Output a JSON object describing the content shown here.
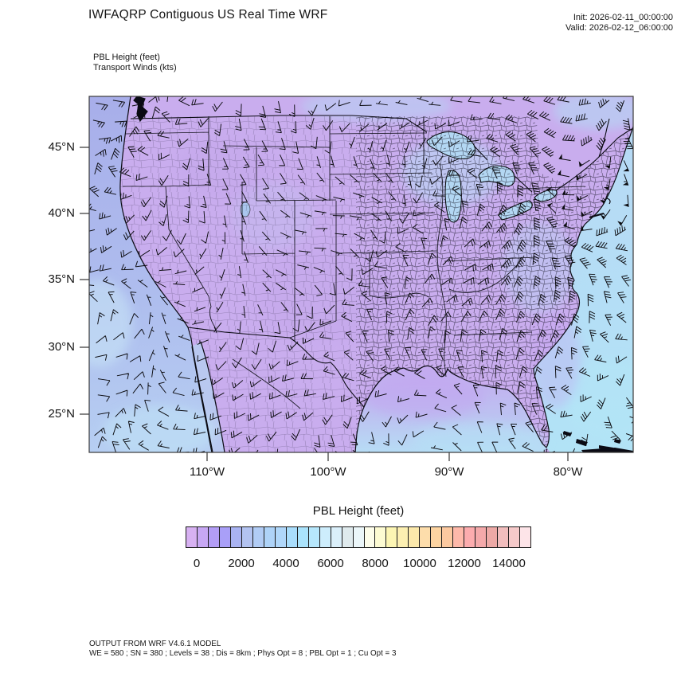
{
  "header": {
    "title": "IWFAQRP Contiguous US Real Time WRF",
    "init": "Init: 2026-02-11_00:00:00",
    "valid": "Valid: 2026-02-12_06:00:00"
  },
  "field_labels": {
    "line1": "PBL Height   (feet)",
    "line2": "Transport Winds   (kts)"
  },
  "axes": {
    "lat_ticks": [
      "45°N",
      "40°N",
      "35°N",
      "30°N",
      "25°N"
    ],
    "lon_ticks": [
      "110°W",
      "100°W",
      "90°W",
      "80°W"
    ]
  },
  "colorbar": {
    "title": "PBL Height  (feet)",
    "tick_labels": [
      "0",
      "2000",
      "4000",
      "6000",
      "8000",
      "10000",
      "12000",
      "14000"
    ],
    "colors": [
      "#d7b1f2",
      "#c7a7f4",
      "#b39df6",
      "#a99ff8",
      "#a9b3f2",
      "#b3c3f1",
      "#b1ccf5",
      "#aed3f8",
      "#b0d7fa",
      "#a9ddfc",
      "#aae3fc",
      "#b6e7fc",
      "#cdedfc",
      "#daeffa",
      "#dfeaed",
      "#ebf6f9",
      "#fdfdea",
      "#fdfbd2",
      "#fcf5b3",
      "#fcefb1",
      "#fce9ab",
      "#fdddab",
      "#fdd4a1",
      "#fcc9a0",
      "#feb9aa",
      "#fcacae",
      "#f4a9aa",
      "#eda9a6",
      "#f1bdbd",
      "#f6caca",
      "#fde4e8"
    ]
  },
  "footer": {
    "line1": "OUTPUT FROM WRF V4.6.1 MODEL",
    "line2": "WE = 580 ; SN = 380 ; Levels = 38 ; Dis = 8km ; Phys Opt = 8 ; PBL Opt = 1 ; Cu Opt = 3"
  },
  "chart_data": {
    "type": "heatmap",
    "title": "IWFAQRP Contiguous US Real Time WRF",
    "field": "PBL Height",
    "units": "feet",
    "wind_overlay": "Transport Winds",
    "wind_overlay_units": "kts",
    "init_time": "2026-02-11_00:00:00",
    "valid_time": "2026-02-12_06:00:00",
    "x_axis": {
      "label": "longitude",
      "ticks_deg_west": [
        110,
        100,
        90,
        80
      ]
    },
    "y_axis": {
      "label": "latitude",
      "ticks_deg_north": [
        45,
        40,
        35,
        30,
        25
      ]
    },
    "colorbar": {
      "label_min": 0,
      "label_max": 14000,
      "label_step": 2000,
      "cell_step_ft": 500,
      "n_cells": 31
    },
    "regions_approx_pbl_ft": [
      {
        "region": "contiguous US land (most areas)",
        "value_ft": "500-1500"
      },
      {
        "region": "Pacific Ocean offshore",
        "value_ft": "2000-3500"
      },
      {
        "region": "Gulf of Mexico (south)",
        "value_ft": "1500-4000"
      },
      {
        "region": "Atlantic Ocean (southeast / offshore New England)",
        "value_ft": "3500-5000"
      },
      {
        "region": "Great Lakes vicinity",
        "value_ft": "2000-4000"
      }
    ]
  }
}
